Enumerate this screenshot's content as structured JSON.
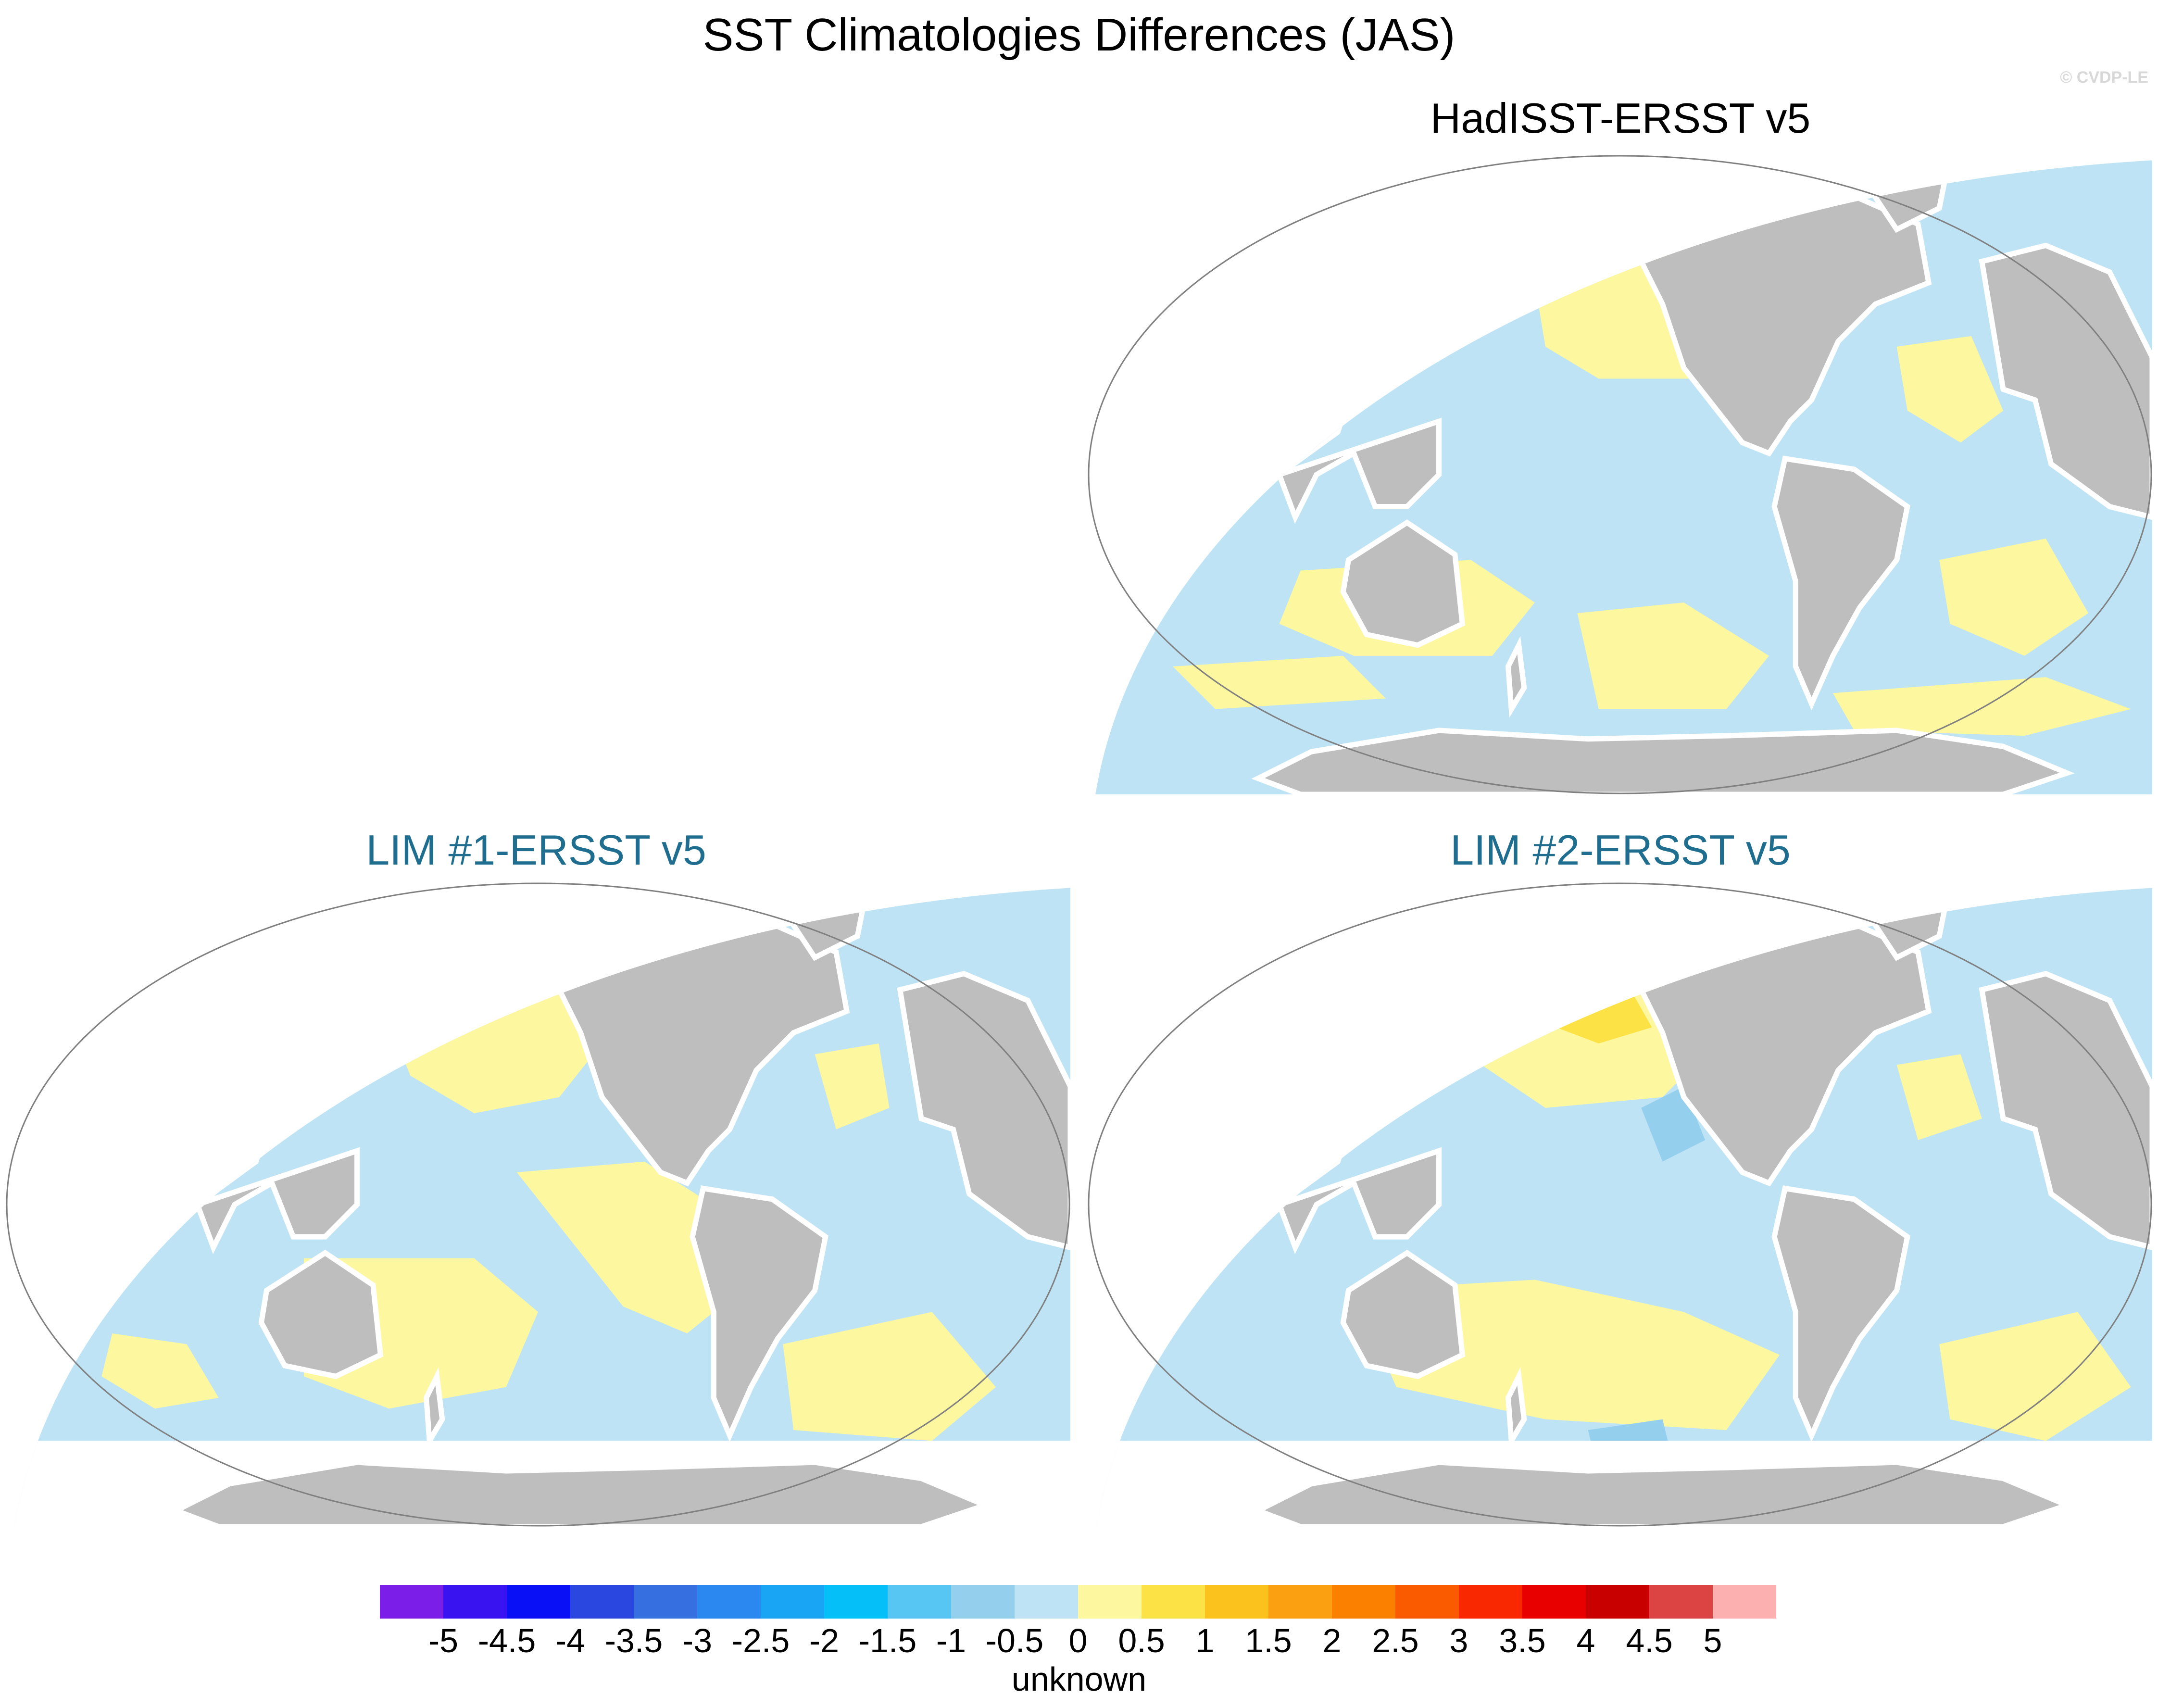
{
  "figure": {
    "title": "SST Climatologies Differences (JAS)",
    "credit": "© CVDP-LE"
  },
  "panels": [
    {
      "id": "hadisst",
      "title": "HadISST-ERSST v5",
      "title_color": "#000000",
      "position": "top-right"
    },
    {
      "id": "lim1",
      "title": "LIM #1-ERSST v5",
      "title_color": "#1f6d8f",
      "position": "bottom-left"
    },
    {
      "id": "lim2",
      "title": "LIM #2-ERSST v5",
      "title_color": "#1f6d8f",
      "position": "bottom-right"
    }
  ],
  "map_style": {
    "projection": "Robinson-like (Pacific-centered)",
    "land_color": "#bebebe",
    "ocean_fill_neutral": "#bde3f5",
    "ice_mask_color": "#ffffff"
  },
  "colorbar": {
    "units_label": "unknown",
    "tick_labels": [
      "-5",
      "-4.5",
      "-4",
      "-3.5",
      "-3",
      "-2.5",
      "-2",
      "-1.5",
      "-1",
      "-0.5",
      "0",
      "0.5",
      "1",
      "1.5",
      "2",
      "2.5",
      "3",
      "3.5",
      "4",
      "4.5",
      "5"
    ],
    "colors": [
      "#7a1ee8",
      "#3a14f0",
      "#0a10f5",
      "#2a48e0",
      "#3670e0",
      "#2a88f0",
      "#1aa4f4",
      "#05c0f8",
      "#58c6f2",
      "#94d0ee",
      "#bde3f5",
      "#fdf7a0",
      "#fce244",
      "#fbc21e",
      "#fba010",
      "#fb8000",
      "#fa5a00",
      "#fa2800",
      "#e80000",
      "#c80000",
      "#dc4444",
      "#fcb0b0"
    ]
  }
}
